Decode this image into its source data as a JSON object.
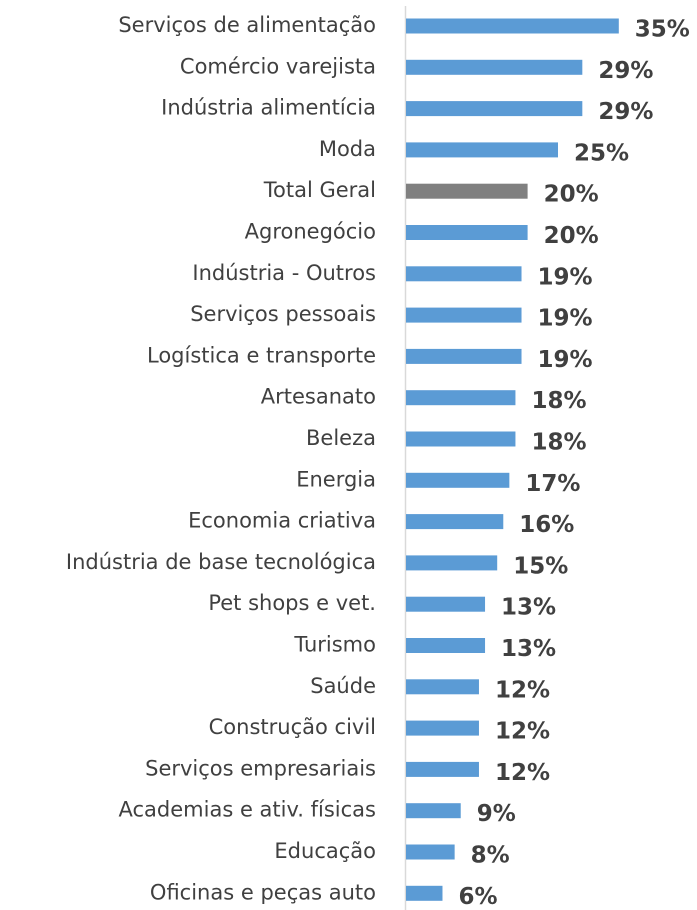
{
  "chart_data": {
    "type": "bar",
    "orientation": "horizontal",
    "categories": [
      "Serviços de alimentação",
      "Comércio varejista",
      "Indústria alimentícia",
      "Moda",
      "Total Geral",
      "Agronegócio",
      "Indústria - Outros",
      "Serviços pessoais",
      "Logística e transporte",
      "Artesanato",
      "Beleza",
      "Energia",
      "Economia criativa",
      "Indústria de base tecnológica",
      "Pet shops e vet.",
      "Turismo",
      "Saúde",
      "Construção civil",
      "Serviços empresariais",
      "Academias e ativ. físicas",
      "Educação",
      "Oficinas e peças auto"
    ],
    "values": [
      35,
      29,
      29,
      25,
      20,
      20,
      19,
      19,
      19,
      18,
      18,
      17,
      16,
      15,
      13,
      13,
      12,
      12,
      12,
      9,
      8,
      6
    ],
    "value_labels": [
      "35%",
      "29%",
      "29%",
      "25%",
      "20%",
      "20%",
      "19%",
      "19%",
      "19%",
      "18%",
      "18%",
      "17%",
      "16%",
      "15%",
      "13%",
      "13%",
      "12%",
      "12%",
      "12%",
      "9%",
      "8%",
      "6%"
    ],
    "colors": [
      "#5b9bd5",
      "#5b9bd5",
      "#5b9bd5",
      "#5b9bd5",
      "#808080",
      "#5b9bd5",
      "#5b9bd5",
      "#5b9bd5",
      "#5b9bd5",
      "#5b9bd5",
      "#5b9bd5",
      "#5b9bd5",
      "#5b9bd5",
      "#5b9bd5",
      "#5b9bd5",
      "#5b9bd5",
      "#5b9bd5",
      "#5b9bd5",
      "#5b9bd5",
      "#5b9bd5",
      "#5b9bd5",
      "#5b9bd5"
    ]
  }
}
